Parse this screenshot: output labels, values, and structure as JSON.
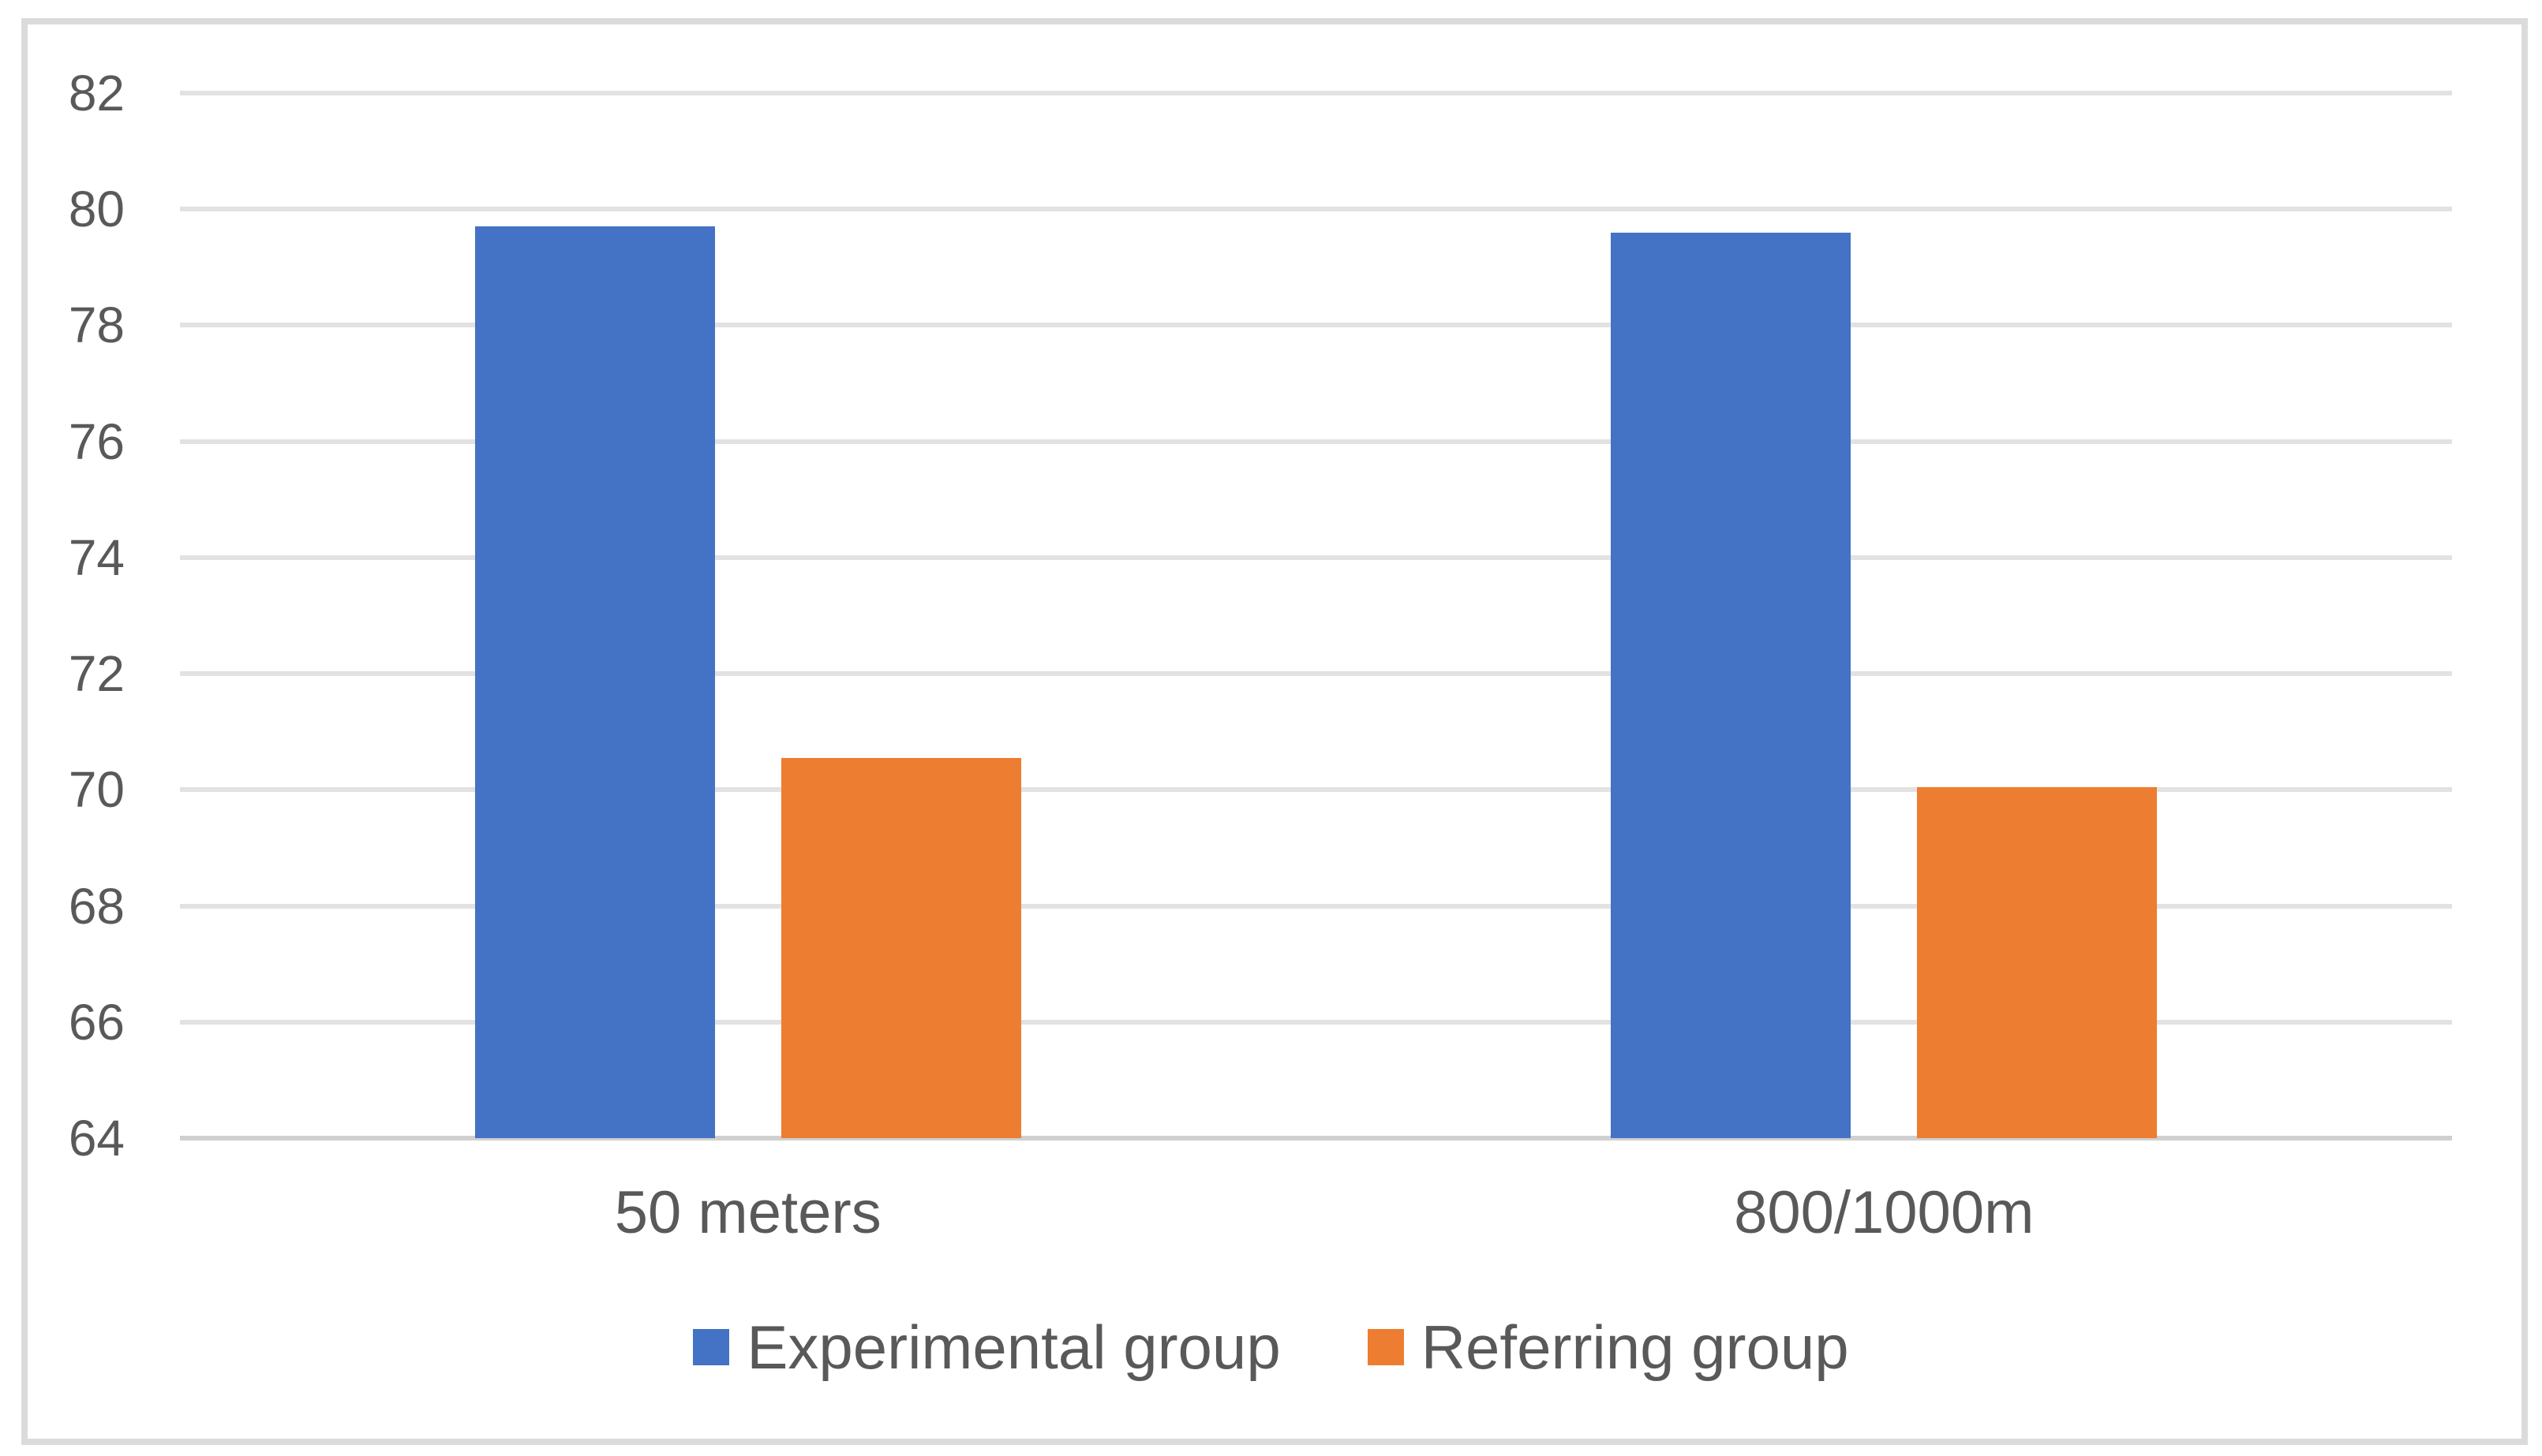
{
  "chart_data": {
    "type": "bar",
    "categories": [
      "50 meters",
      "800/1000m"
    ],
    "series": [
      {
        "name": "Experimental group",
        "color": "#4472C4",
        "values": [
          79.7,
          79.6
        ]
      },
      {
        "name": "Referring group",
        "color": "#ED7D31",
        "values": [
          70.55,
          70.05
        ]
      }
    ],
    "ylim": [
      64,
      82
    ],
    "yticks": [
      64,
      66,
      68,
      70,
      72,
      74,
      76,
      78,
      80,
      82
    ],
    "grid": "horizontal",
    "legend_position": "bottom-center"
  },
  "colors": {
    "background": "#ffffff",
    "frame_border": "#dbdbdb",
    "gridline": "#e2e2e2",
    "axis_baseline": "#d0d0d0",
    "text": "#595959",
    "series_blue": "#4472C4",
    "series_orange": "#ED7D31"
  }
}
